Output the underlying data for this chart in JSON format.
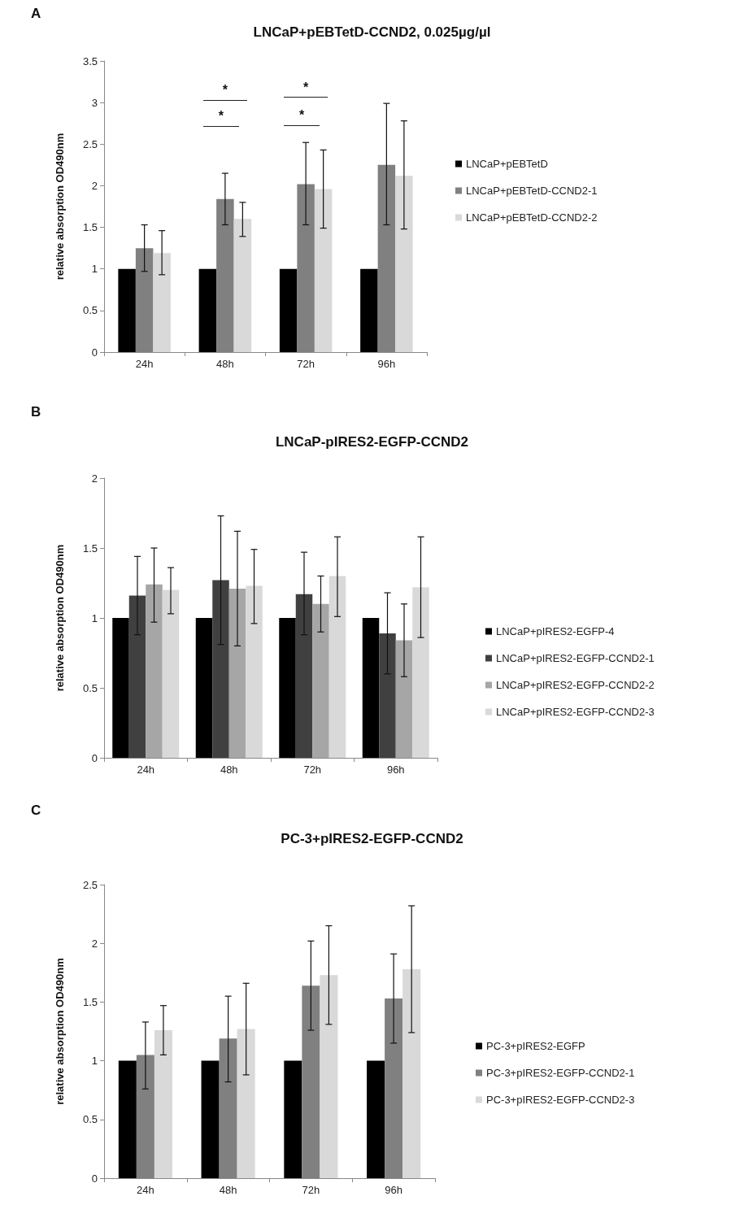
{
  "chart_data": [
    {
      "type": "bar",
      "title": "LNCaP+pEBTetD-CCND2, 0.025µg/µl",
      "ylabel": "relative absorption OD490nm",
      "annotations": [
        "A",
        "*",
        "*",
        "*",
        "*"
      ],
      "categories": [
        "24h",
        "48h",
        "72h",
        "96h"
      ],
      "series": [
        {
          "name": "LNCaP+pEBTetD",
          "color": "#000000",
          "values": [
            1,
            1,
            1,
            1
          ]
        },
        {
          "name": "LNCaP+pEBTetD-CCND2-1",
          "color": "#808080",
          "values": [
            1.25,
            1.84,
            2.02,
            2.25
          ],
          "errors": [
            [
              0.97,
              1.53
            ],
            [
              1.53,
              2.15
            ],
            [
              1.53,
              2.52
            ],
            [
              1.53,
              2.99
            ]
          ]
        },
        {
          "name": "LNCaP+pEBTetD-CCND2-2",
          "color": "#d9d9d9",
          "values": [
            1.19,
            1.6,
            1.96,
            2.12
          ],
          "errors": [
            [
              0.93,
              1.46
            ],
            [
              1.39,
              1.8
            ],
            [
              1.49,
              2.43
            ],
            [
              1.48,
              2.78
            ]
          ]
        }
      ],
      "ylim": [
        0,
        3.5
      ],
      "yticks": [
        0,
        0.5,
        1,
        1.5,
        2,
        2.5,
        3,
        3.5
      ],
      "grid": false,
      "legend": "right"
    },
    {
      "type": "bar",
      "title": "LNCaP-pIRES2-EGFP-CCND2",
      "ylabel": "relative absorption OD490nm",
      "annotations": [
        "B"
      ],
      "categories": [
        "24h",
        "48h",
        "72h",
        "96h"
      ],
      "series": [
        {
          "name": "LNCaP+pIRES2-EGFP-4",
          "color": "#000000",
          "values": [
            1,
            1,
            1,
            1
          ]
        },
        {
          "name": "LNCaP+pIRES2-EGFP-CCND2-1",
          "color": "#404040",
          "values": [
            1.16,
            1.27,
            1.17,
            0.89
          ],
          "errors": [
            [
              0.88,
              1.44
            ],
            [
              0.81,
              1.73
            ],
            [
              0.88,
              1.47
            ],
            [
              0.6,
              1.18
            ]
          ]
        },
        {
          "name": "LNCaP+pIRES2-EGFP-CCND2-2",
          "color": "#a6a6a6",
          "values": [
            1.24,
            1.21,
            1.1,
            0.84
          ],
          "errors": [
            [
              0.97,
              1.5
            ],
            [
              0.8,
              1.62
            ],
            [
              0.9,
              1.3
            ],
            [
              0.58,
              1.1
            ]
          ]
        },
        {
          "name": "LNCaP+pIRES2-EGFP-CCND2-3",
          "color": "#d9d9d9",
          "values": [
            1.2,
            1.23,
            1.3,
            1.22
          ],
          "errors": [
            [
              1.03,
              1.36
            ],
            [
              0.96,
              1.49
            ],
            [
              1.01,
              1.58
            ],
            [
              0.86,
              1.58
            ]
          ]
        }
      ],
      "ylim": [
        0,
        2
      ],
      "yticks": [
        0,
        0.5,
        1,
        1.5,
        2
      ],
      "grid": false,
      "legend": "right"
    },
    {
      "type": "bar",
      "title": "PC-3+pIRES2-EGFP-CCND2",
      "ylabel": "relative absorption OD490nm",
      "annotations": [
        "C"
      ],
      "categories": [
        "24h",
        "48h",
        "72h",
        "96h"
      ],
      "series": [
        {
          "name": "PC-3+pIRES2-EGFP",
          "color": "#000000",
          "values": [
            1,
            1,
            1,
            1
          ]
        },
        {
          "name": "PC-3+pIRES2-EGFP-CCND2-1",
          "color": "#808080",
          "values": [
            1.05,
            1.19,
            1.64,
            1.53
          ],
          "errors": [
            [
              0.76,
              1.33
            ],
            [
              0.82,
              1.55
            ],
            [
              1.26,
              2.02
            ],
            [
              1.15,
              1.91
            ]
          ]
        },
        {
          "name": "PC-3+pIRES2-EGFP-CCND2-3",
          "color": "#d9d9d9",
          "values": [
            1.26,
            1.27,
            1.73,
            1.78
          ],
          "errors": [
            [
              1.05,
              1.47
            ],
            [
              0.88,
              1.66
            ],
            [
              1.31,
              2.15
            ],
            [
              1.24,
              2.32
            ]
          ]
        }
      ],
      "ylim": [
        0,
        2.5
      ],
      "yticks": [
        0,
        0.5,
        1,
        1.5,
        2,
        2.5
      ],
      "grid": false,
      "legend": "right"
    }
  ]
}
